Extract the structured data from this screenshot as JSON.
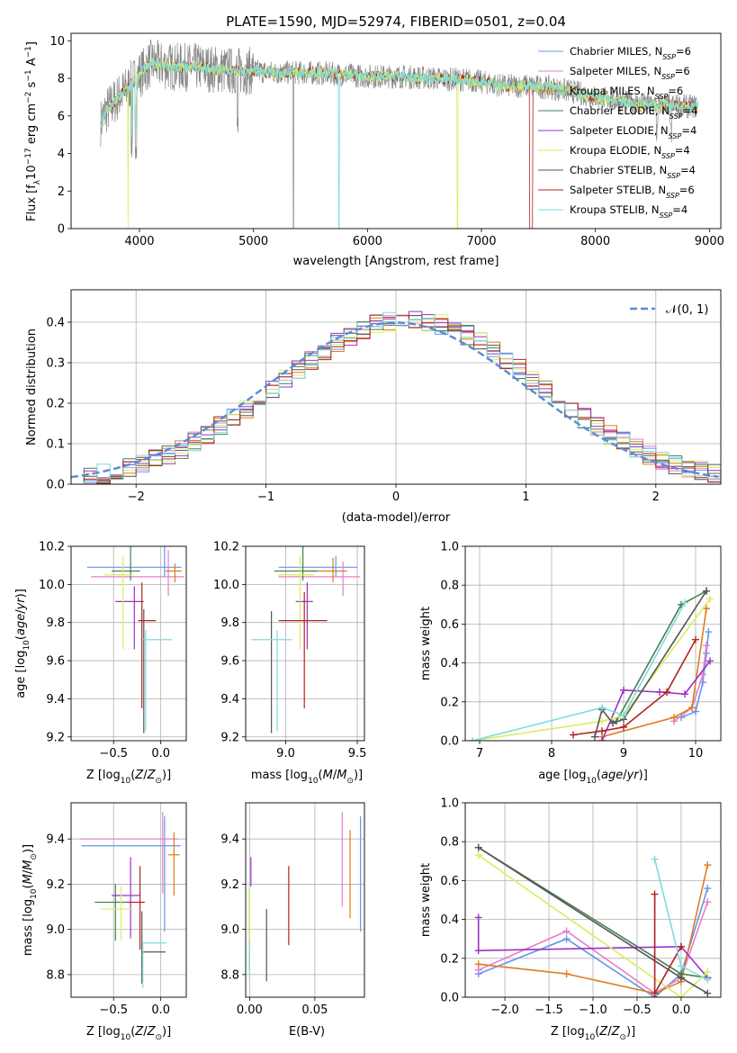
{
  "title": "PLATE=1590, MJD=52974, FIBERID=0501, z=0.04",
  "colors": [
    "#6495ed",
    "#e87fc9",
    "#e07c1f",
    "#4a7d53",
    "#9b30c5",
    "#d9ee5f",
    "#555555",
    "#b22222",
    "#7fdcdc"
  ],
  "models": [
    {
      "name": "Chabrier MILES, N_SSP=6",
      "label": "Chabrier MILES, N",
      "sub": "SSP",
      "eq": "=6"
    },
    {
      "name": "Salpeter MILES, N_SSP=6",
      "label": "Salpeter MILES, N",
      "sub": "SSP",
      "eq": "=6"
    },
    {
      "name": "Kroupa MILES, N_SSP=6",
      "label": "Kroupa MILES, N",
      "sub": "SSP",
      "eq": "=6"
    },
    {
      "name": "Chabrier ELODIE, N_SSP=4",
      "label": "Chabrier ELODIE, N",
      "sub": "SSP",
      "eq": "=4"
    },
    {
      "name": "Salpeter ELODIE, N_SSP=4",
      "label": "Salpeter ELODIE, N",
      "sub": "SSP",
      "eq": "=4"
    },
    {
      "name": "Kroupa ELODIE, N_SSP=4",
      "label": "Kroupa ELODIE, N",
      "sub": "SSP",
      "eq": "=4"
    },
    {
      "name": "Chabrier STELIB, N_SSP=4",
      "label": "Chabrier STELIB, N",
      "sub": "SSP",
      "eq": "=4"
    },
    {
      "name": "Salpeter STELIB, N_SSP=6",
      "label": "Salpeter STELIB, N",
      "sub": "SSP",
      "eq": "=6"
    },
    {
      "name": "Kroupa STELIB, N_SSP=4",
      "label": "Kroupa STELIB, N",
      "sub": "SSP",
      "eq": "=4"
    }
  ],
  "chart_data": [
    {
      "type": "line",
      "ylabel": "Flux [fλ10⁻¹⁷ erg cm⁻² s⁻¹ A⁻¹]",
      "xlabel": "wavelength [Angstrom, rest frame]",
      "xlim": [
        3400,
        9100
      ],
      "ylim": [
        0,
        10.4
      ],
      "xticks": [
        4000,
        5000,
        6000,
        7000,
        8000,
        9000
      ],
      "yticks": [
        0,
        2,
        4,
        6,
        8,
        10
      ],
      "grid": false,
      "legend": "top-right",
      "continuum": {
        "x": [
          3650,
          3700,
          3800,
          3900,
          4000,
          4100,
          4300,
          4500,
          4800,
          5000,
          5200,
          5500,
          5800,
          6000,
          6300,
          6600,
          6900,
          7000,
          7200,
          7400,
          7600,
          7800,
          8000,
          8200,
          8400,
          8600,
          8800,
          8900
        ],
        "y": [
          5.5,
          6.2,
          6.9,
          7.5,
          8.2,
          8.8,
          8.6,
          8.6,
          8.4,
          8.4,
          8.3,
          8.3,
          8.2,
          8.1,
          8.1,
          8.0,
          7.9,
          7.8,
          7.6,
          7.6,
          7.5,
          7.3,
          7.0,
          6.8,
          6.6,
          6.6,
          6.5,
          6.5
        ]
      }
    },
    {
      "type": "histogram",
      "ylabel": "Normed distribution",
      "xlabel": "(data-model)/error",
      "xlim": [
        -2.5,
        2.5
      ],
      "ylim": [
        0,
        0.48
      ],
      "xticks": [
        -2,
        -1,
        0,
        1,
        2
      ],
      "yticks": [
        0.0,
        0.1,
        0.2,
        0.3,
        0.4
      ],
      "grid": true,
      "legend": "top-right",
      "reference": {
        "name": "𝒩(0, 1)",
        "mean": 0,
        "sigma": 1
      },
      "bin_width": 0.1
    },
    {
      "type": "scatter",
      "xlabel": "Z [log10(Z/Z☉)]",
      "ylabel": "age [log10(age/yr)]",
      "xlim": [
        -0.95,
        0.27
      ],
      "ylim": [
        9.18,
        10.2
      ],
      "xticks": [
        -0.5,
        0.0
      ],
      "yticks": [
        9.2,
        9.4,
        9.6,
        9.8,
        10.0,
        10.2
      ],
      "grid": true,
      "points": [
        {
          "x": 0.04,
          "y": 10.09,
          "xerr": [
            0.82,
            0.18
          ],
          "yerr": [
            0.05,
            0.17
          ]
        },
        {
          "x": 0.08,
          "y": 10.04,
          "xerr": [
            0.82,
            0.17
          ],
          "yerr": [
            0.1,
            0.14
          ]
        },
        {
          "x": 0.15,
          "y": 10.07,
          "xerr": [
            0.1,
            0.07
          ],
          "yerr": [
            0.06,
            0.04
          ]
        },
        {
          "x": -0.32,
          "y": 10.07,
          "xerr": [
            0.2,
            0.1
          ],
          "yerr": [
            0.05,
            0.4
          ]
        },
        {
          "x": -0.28,
          "y": 9.91,
          "xerr": [
            0.2,
            0.1
          ],
          "yerr": [
            0.25,
            0.08
          ]
        },
        {
          "x": -0.4,
          "y": 10.05,
          "xerr": [
            0.2,
            0.1
          ],
          "yerr": [
            0.39,
            0.1
          ]
        },
        {
          "x": -0.18,
          "y": 9.71,
          "xerr": [
            0.03,
            0.01
          ],
          "yerr": [
            0.49,
            0.16
          ]
        },
        {
          "x": -0.2,
          "y": 9.81,
          "xerr": [
            0.04,
            0.15
          ],
          "yerr": [
            0.46,
            0.2
          ]
        },
        {
          "x": -0.16,
          "y": 9.71,
          "xerr": [
            0.04,
            0.28
          ],
          "yerr": [
            0.48,
            0.05
          ]
        }
      ]
    },
    {
      "type": "scatter",
      "xlabel": "mass [log10(M/M☉)]",
      "ylabel": "",
      "xlim": [
        8.72,
        9.55
      ],
      "ylim": [
        9.18,
        10.2
      ],
      "xticks": [
        9.0,
        9.5
      ],
      "yticks": [
        9.2,
        9.4,
        9.6,
        9.8,
        10.0,
        10.2
      ],
      "grid": true,
      "points": [
        {
          "x": 9.35,
          "y": 10.09,
          "xerr": [
            0.4,
            0.15
          ],
          "yerr": [
            0.05,
            0.06
          ]
        },
        {
          "x": 9.4,
          "y": 10.04,
          "xerr": [
            0.45,
            0.12
          ],
          "yerr": [
            0.1,
            0.08
          ]
        },
        {
          "x": 9.33,
          "y": 10.07,
          "xerr": [
            0.2,
            0.1
          ],
          "yerr": [
            0.06,
            0.07
          ]
        },
        {
          "x": 9.12,
          "y": 10.07,
          "xerr": [
            0.2,
            0.1
          ],
          "yerr": [
            0.05,
            0.4
          ]
        },
        {
          "x": 9.15,
          "y": 9.91,
          "xerr": [
            0.08,
            0.04
          ],
          "yerr": [
            0.25,
            0.1
          ]
        },
        {
          "x": 9.1,
          "y": 10.05,
          "xerr": [
            0.15,
            0.1
          ],
          "yerr": [
            0.39,
            0.1
          ]
        },
        {
          "x": 8.9,
          "y": 9.71,
          "xerr": [
            0.0,
            0.0
          ],
          "yerr": [
            0.49,
            0.15
          ]
        },
        {
          "x": 9.13,
          "y": 9.81,
          "xerr": [
            0.18,
            0.16
          ],
          "yerr": [
            0.46,
            0.15
          ]
        },
        {
          "x": 8.94,
          "y": 9.71,
          "xerr": [
            0.18,
            0.1
          ],
          "yerr": [
            0.48,
            0.05
          ]
        }
      ]
    },
    {
      "type": "line",
      "xlabel": "age  [log10(age/yr)]",
      "ylabel": "mass weight",
      "xlim": [
        6.8,
        10.35
      ],
      "ylim": [
        0,
        1.0
      ],
      "xticks": [
        7,
        8,
        9,
        10
      ],
      "yticks": [
        0.0,
        0.2,
        0.4,
        0.6,
        0.8,
        1.0
      ],
      "grid": true,
      "series": [
        {
          "x": [
            9.8,
            10.0,
            10.1,
            10.15,
            10.18
          ],
          "y": [
            0.12,
            0.15,
            0.3,
            0.45,
            0.56
          ]
        },
        {
          "x": [
            9.7,
            9.95,
            10.1,
            10.15
          ],
          "y": [
            0.1,
            0.17,
            0.34,
            0.49
          ]
        },
        {
          "x": [
            8.7,
            9.7,
            9.95,
            10.15
          ],
          "y": [
            0.02,
            0.12,
            0.17,
            0.68
          ]
        },
        {
          "x": [
            8.9,
            9.8,
            10.15
          ],
          "y": [
            0.1,
            0.7,
            0.77
          ]
        },
        {
          "x": [
            8.7,
            9.0,
            9.5,
            9.85,
            10.2
          ],
          "y": [
            0.0,
            0.26,
            0.25,
            0.24,
            0.41
          ]
        },
        {
          "x": [
            6.9,
            8.7,
            9.0,
            10.2
          ],
          "y": [
            0.0,
            0.1,
            0.13,
            0.73
          ]
        },
        {
          "x": [
            8.6,
            8.7,
            8.85,
            9.0,
            10.15
          ],
          "y": [
            0.02,
            0.16,
            0.09,
            0.11,
            0.77
          ]
        },
        {
          "x": [
            8.3,
            8.7,
            9.0,
            9.6,
            10.0
          ],
          "y": [
            0.03,
            0.05,
            0.07,
            0.25,
            0.52
          ]
        },
        {
          "x": [
            6.9,
            8.7,
            9.0,
            9.85
          ],
          "y": [
            0.0,
            0.17,
            0.13,
            0.71
          ]
        }
      ]
    },
    {
      "type": "scatter",
      "xlabel": "Z [log10(Z/Z☉)]",
      "ylabel": "mass [log10(M/M☉)]",
      "xlim": [
        -0.95,
        0.27
      ],
      "ylim": [
        8.7,
        9.56
      ],
      "xticks": [
        -0.5,
        0.0
      ],
      "yticks": [
        8.8,
        9.0,
        9.2,
        9.4
      ],
      "grid": true,
      "points": [
        {
          "x": 0.04,
          "y": 9.37,
          "xerr": [
            0.88,
            0.17
          ],
          "yerr": [
            0.38,
            0.13
          ]
        },
        {
          "x": 0.02,
          "y": 9.4,
          "xerr": [
            0.87,
            0.16
          ],
          "yerr": [
            0.24,
            0.12
          ]
        },
        {
          "x": 0.14,
          "y": 9.33,
          "xerr": [
            0.06,
            0.06
          ],
          "yerr": [
            0.18,
            0.1
          ]
        },
        {
          "x": -0.48,
          "y": 9.12,
          "xerr": [
            0.22,
            0.12
          ],
          "yerr": [
            0.17,
            0.08
          ]
        },
        {
          "x": -0.32,
          "y": 9.15,
          "xerr": [
            0.2,
            0.1
          ],
          "yerr": [
            0.19,
            0.17
          ]
        },
        {
          "x": -0.42,
          "y": 9.09,
          "xerr": [
            0.22,
            0.12
          ],
          "yerr": [
            0.14,
            0.1
          ]
        },
        {
          "x": -0.2,
          "y": 8.9,
          "xerr": [
            0.0,
            0.25
          ],
          "yerr": [
            0.14,
            0.18
          ]
        },
        {
          "x": -0.22,
          "y": 9.12,
          "xerr": [
            0.14,
            0.05
          ],
          "yerr": [
            0.21,
            0.16
          ]
        },
        {
          "x": -0.19,
          "y": 8.94,
          "xerr": [
            0.0,
            0.25
          ],
          "yerr": [
            0.2,
            0.0
          ]
        }
      ]
    },
    {
      "type": "scatter",
      "xlabel": "E(B-V)",
      "ylabel": "",
      "xlim": [
        -0.003,
        0.088
      ],
      "ylim": [
        8.7,
        9.56
      ],
      "xticks": [
        0.0,
        0.05
      ],
      "yticks": [
        8.8,
        9.0,
        9.2,
        9.4
      ],
      "grid": true,
      "points": [
        {
          "x": 0.085,
          "y": 9.25,
          "yerr": [
            0.26,
            0.25
          ]
        },
        {
          "x": 0.071,
          "y": 9.31,
          "yerr": [
            0.21,
            0.21
          ]
        },
        {
          "x": 0.077,
          "y": 9.19,
          "yerr": [
            0.14,
            0.25
          ]
        },
        {
          "x": 0.0,
          "y": 9.0,
          "yerr": [
            0.18,
            0.18
          ]
        },
        {
          "x": 0.001,
          "y": 9.19,
          "yerr": [
            0.0,
            0.13
          ]
        },
        {
          "x": 0.0,
          "y": 9.0,
          "yerr": [
            0.12,
            0.18
          ]
        },
        {
          "x": 0.013,
          "y": 8.92,
          "yerr": [
            0.15,
            0.17
          ]
        },
        {
          "x": 0.03,
          "y": 9.1,
          "yerr": [
            0.17,
            0.18
          ]
        },
        {
          "x": 0.0,
          "y": 8.9,
          "yerr": [
            0.12,
            0.05
          ]
        }
      ]
    },
    {
      "type": "line",
      "xlabel": "Z [log10(Z/Z☉)]",
      "ylabel": "mass weight",
      "xlim": [
        -2.45,
        0.45
      ],
      "ylim": [
        0,
        1.0
      ],
      "xticks": [
        -2.0,
        -1.5,
        -1.0,
        -0.5,
        0.0
      ],
      "yticks": [
        0.0,
        0.2,
        0.4,
        0.6,
        0.8,
        1.0
      ],
      "grid": true,
      "series": [
        {
          "x": [
            -2.3,
            -1.3,
            -0.3,
            0.0,
            0.3
          ],
          "y": [
            0.12,
            0.3,
            0.0,
            0.12,
            0.56
          ]
        },
        {
          "x": [
            -2.3,
            -1.3,
            -0.3,
            0.0,
            0.3
          ],
          "y": [
            0.14,
            0.34,
            0.02,
            0.1,
            0.49
          ]
        },
        {
          "x": [
            -2.3,
            -1.3,
            -0.3,
            0.0,
            0.3
          ],
          "y": [
            0.17,
            0.12,
            0.02,
            0.08,
            0.68
          ]
        },
        {
          "x": [
            -2.3,
            0.0,
            0.3
          ],
          "y": [
            0.77,
            0.12,
            0.1
          ]
        },
        {
          "x": [
            -2.3,
            -2.3,
            0.0,
            0.3
          ],
          "y": [
            0.41,
            0.24,
            0.26,
            0.1
          ]
        },
        {
          "x": [
            -2.3,
            0.0,
            0.3
          ],
          "y": [
            0.73,
            0.0,
            0.13
          ]
        },
        {
          "x": [
            -2.3,
            0.0,
            0.3
          ],
          "y": [
            0.77,
            0.1,
            0.02
          ]
        },
        {
          "x": [
            -0.3,
            -0.3,
            0.0
          ],
          "y": [
            0.53,
            0.02,
            0.26
          ]
        },
        {
          "x": [
            -0.3,
            0.0,
            0.3
          ],
          "y": [
            0.71,
            0.16,
            0.09
          ]
        }
      ]
    }
  ],
  "labels": {
    "p1_ylabel": "Flux [f",
    "p1_xlabel": "wavelength [Angstrom, rest frame]",
    "p2_ylabel": "Normed distribution",
    "p2_xlabel": "(data-model)/error",
    "p2_legend": "𝒩(0, 1)",
    "p3_ylabel": "age  [log",
    "z_xlabel": "Z [log",
    "mass_xlabel": "mass [log",
    "mw_ylabel": "mass weight",
    "age_xlabel": "age  [log",
    "mass_ylabel": "mass [log",
    "ebv_xlabel": "E(B-V)"
  }
}
